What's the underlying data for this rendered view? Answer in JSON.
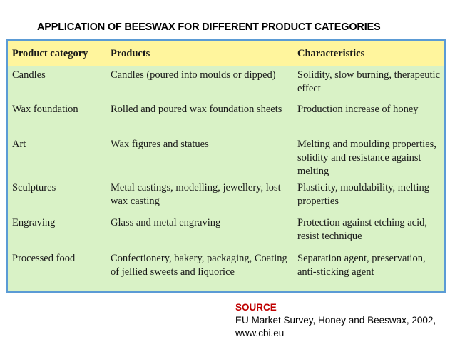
{
  "title": "APPLICATION OF BEESWAX FOR DIFFERENT PRODUCT CATEGORIES",
  "table": {
    "headers": [
      "Product category",
      "Products",
      "Characteristics"
    ],
    "rows": [
      {
        "category": "Candles",
        "products": "Candles (poured into moulds or dipped)",
        "characteristics": "Solidity, slow burning, therapeutic effect"
      },
      {
        "category": "Wax foundation",
        "products": "Rolled and poured wax foundation sheets",
        "characteristics": "Production increase of honey"
      },
      {
        "category": "Art",
        "products": "Wax figures and statues",
        "characteristics": "Melting and moulding properties, solidity and resistance against melting"
      },
      {
        "category": "Sculptures",
        "products": "Metal castings, modelling, jewellery, lost wax casting",
        "characteristics": "Plasticity, mouldability, melting properties"
      },
      {
        "category": "Engraving",
        "products": "Glass and metal engraving",
        "characteristics": "Protection against etching acid, resist technique"
      },
      {
        "category": "Processed food",
        "products": "Confectionery, bakery, packaging, Coating of jellied sweets and liquorice",
        "characteristics": "Separation agent, preservation, anti-sticking agent"
      }
    ]
  },
  "source": {
    "label": "SOURCE",
    "line1": "EU Market Survey, Honey and Beeswax, 2002,",
    "line2": "www.cbi.eu"
  },
  "colors": {
    "header_band": "#fff59d",
    "table_body": "#d9f2c6",
    "frame_border": "#5b9bd5",
    "source_label": "#c00000"
  }
}
